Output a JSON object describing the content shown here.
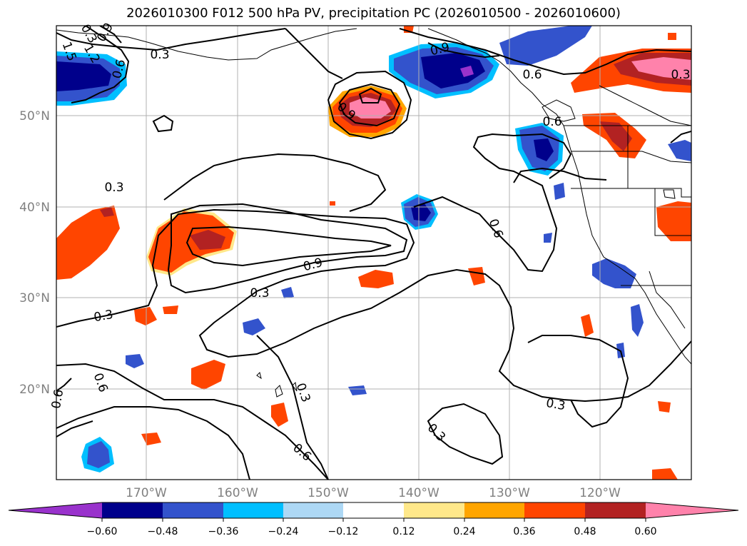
{
  "title": "2026010300 F012 500 hPa PV, precipitation PC (2026010500 - 2026010600)",
  "lat_labels": [
    "50°N",
    "40°N",
    "30°N",
    "20°N"
  ],
  "lon_labels": [
    "170°W",
    "160°W",
    "150°W",
    "140°W",
    "130°W",
    "120°W"
  ],
  "colorbar": {
    "ticks": [
      "−0.60",
      "−0.48",
      "−0.36",
      "−0.24",
      "−0.12",
      "0.12",
      "0.24",
      "0.36",
      "0.48",
      "0.60"
    ],
    "colors": [
      "#9932cc",
      "#00008b",
      "#3353cc",
      "#00bfff",
      "#add8f5",
      "#ffffff",
      "#ffe88a",
      "#ffa500",
      "#ff4500",
      "#b22222",
      "#ff82ab"
    ]
  },
  "contour_labels": [
    "0.3",
    "0.6",
    "0.9",
    "1.2",
    "1.5",
    "0.6",
    "0.9",
    "0.3",
    "0.9",
    "0.6",
    "0.3",
    "0.6",
    "0.9",
    "0.3",
    "0.3",
    "0.3",
    "0.6",
    "0.6",
    "0.3",
    "0.3",
    "0.6",
    "0.3"
  ],
  "colors": {
    "frame": "#000000",
    "grid": "#b0b0b0",
    "contour": "#000000"
  }
}
